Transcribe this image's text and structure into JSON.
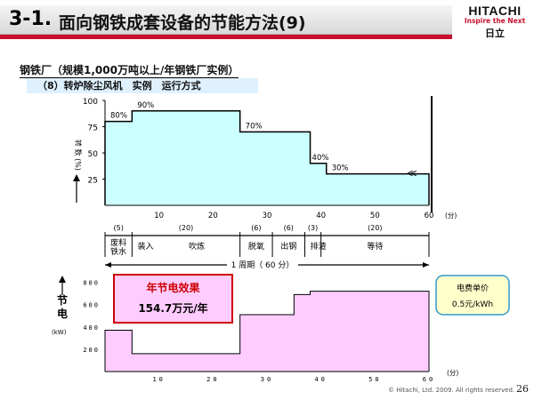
{
  "header": {
    "slide_number": "3-1.",
    "title": "面向钢铁成套设备的节能方法(9)",
    "logo": {
      "name": "HITACHI",
      "tagline": "Inspire the Next",
      "japanese": "日立"
    }
  },
  "subtitle": "钢铁厂（规模1,000万吨以上/年钢铁厂实例）",
  "section_label": "（8）转炉除尘风机　实例　运行方式",
  "chart_data": [
    {
      "type": "area",
      "ylabel": "转 数 (%)",
      "yticks": [
        25,
        50,
        75,
        100
      ],
      "ylim": [
        0,
        100
      ],
      "xlim": [
        0,
        60
      ],
      "xticks": [
        10,
        20,
        30,
        40,
        50,
        60
      ],
      "x_unit": "(分)",
      "steps": [
        {
          "x0": 0,
          "x1": 5,
          "value": 80,
          "label": "80%"
        },
        {
          "x0": 5,
          "x1": 25,
          "value": 90,
          "label": "90%"
        },
        {
          "x0": 25,
          "x1": 38,
          "value": 70,
          "label": "70%"
        },
        {
          "x0": 38,
          "x1": 41,
          "value": 40,
          "label": "40%"
        },
        {
          "x0": 41,
          "x1": 60,
          "value": 30,
          "label": "30%"
        }
      ],
      "fill_color": "#ccffff"
    },
    {
      "type": "area",
      "ylabel_top": "节",
      "ylabel_bottom": "电",
      "yunit": "(kW)",
      "yticks": [
        200,
        400,
        600,
        800
      ],
      "ylim": [
        0,
        900
      ],
      "xlim": [
        0,
        60
      ],
      "xticks": [
        10,
        20,
        30,
        40,
        50,
        60
      ],
      "x_unit": "(分)",
      "steps": [
        {
          "x0": 0,
          "x1": 5,
          "value": 370
        },
        {
          "x0": 5,
          "x1": 25,
          "value": 160
        },
        {
          "x0": 25,
          "x1": 35,
          "value": 510
        },
        {
          "x0": 35,
          "x1": 38,
          "value": 690
        },
        {
          "x0": 38,
          "x1": 60,
          "value": 720
        }
      ],
      "fill_color": "#ffccff"
    }
  ],
  "phases": {
    "durations": [
      "(5)",
      "(20)",
      "(6)",
      "(6)",
      "(3)",
      "(20)"
    ],
    "names": [
      {
        "label": "废料\n铁水",
        "x": 2.5
      },
      {
        "label": "装入",
        "x": 7.5
      },
      {
        "label": "吹炼",
        "x": 17
      },
      {
        "label": "脱氧",
        "x": 28
      },
      {
        "label": "出钢",
        "x": 34
      },
      {
        "label": "排渣",
        "x": 39.5
      },
      {
        "label": "等待",
        "x": 50
      }
    ],
    "cycle_label": "1 周期（ 60 分）"
  },
  "callouts": {
    "savings_title": "年节电效果",
    "savings_value": "154.7万元/年",
    "price_title": "电费单价",
    "price_value": "0.5元/kWh"
  },
  "footer": {
    "copyright": "© Hitachi, Ltd. 2009.  All rights reserved.",
    "page": "26"
  }
}
